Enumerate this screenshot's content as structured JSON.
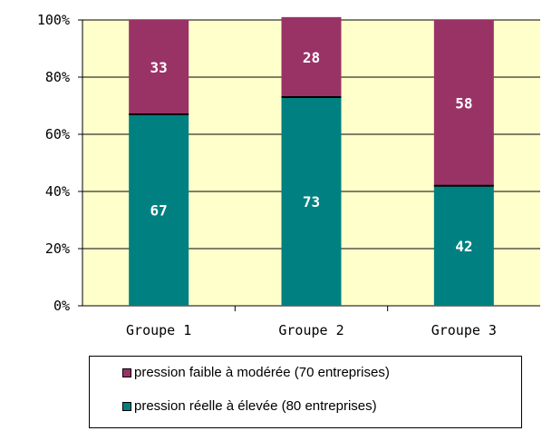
{
  "chart_data": {
    "type": "bar",
    "stacked": true,
    "categories": [
      "Groupe 1",
      "Groupe 2",
      "Groupe 3"
    ],
    "series": [
      {
        "name": "pression réelle à élevée (80 entreprises)",
        "values": [
          67,
          73,
          42
        ],
        "color": "#008080"
      },
      {
        "name": "pression faible à modérée (70 entreprises)",
        "values": [
          33,
          28,
          58
        ],
        "color": "#993366"
      }
    ],
    "y_ticks": [
      "0%",
      "20%",
      "40%",
      "60%",
      "80%",
      "100%"
    ],
    "ylim": [
      0,
      100
    ],
    "plot_background": "#ffffcc",
    "grid": true,
    "legend_position": "bottom",
    "legend_order": [
      "pression faible à modérée (70 entreprises)",
      "pression réelle à élevée (80 entreprises)"
    ]
  }
}
